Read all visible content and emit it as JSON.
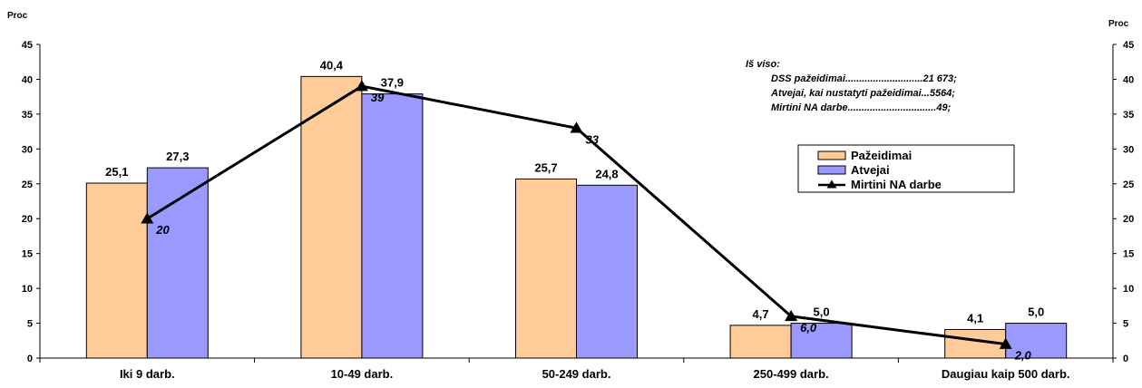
{
  "chart_data": {
    "type": "bar",
    "categories": [
      "Iki 9 darb.",
      "10-49 darb.",
      "50-249 darb.",
      "250-499 darb.",
      "Daugiau kaip 500 darb."
    ],
    "series": [
      {
        "name": "Pažeidimai",
        "type": "bar",
        "color": "#FFCC99",
        "values": [
          25.1,
          40.4,
          25.7,
          4.7,
          4.1
        ],
        "labels": [
          "25,1",
          "40,4",
          "25,7",
          "4,7",
          "4,1"
        ]
      },
      {
        "name": "Atvejai",
        "type": "bar",
        "color": "#9999FF",
        "values": [
          27.3,
          37.9,
          24.8,
          5.0,
          5.0
        ],
        "labels": [
          "27,3",
          "37,9",
          "24,8",
          "5,0",
          "5,0"
        ]
      },
      {
        "name": "Mirtini NA darbe",
        "type": "line",
        "color": "#000000",
        "marker": "triangle",
        "values": [
          20,
          39,
          33,
          6.0,
          2.0
        ],
        "labels": [
          "20",
          "39",
          "33",
          "6,0",
          "2,0"
        ]
      }
    ],
    "ylabel_left": "Proc",
    "ylabel_right": "Proc",
    "ylim": [
      0,
      45
    ],
    "yticks": [
      "0",
      "5",
      "10",
      "15",
      "20",
      "25",
      "30",
      "35",
      "40",
      "45"
    ],
    "grid": false,
    "legend_position": "right",
    "annotation": {
      "title": "Iš viso:",
      "lines": [
        "DSS pažeidimai............................21 673;",
        "Atvejai, kai nustatyti pažeidimai...5564;",
        "Mirtini NA darbe................................49;"
      ]
    }
  }
}
